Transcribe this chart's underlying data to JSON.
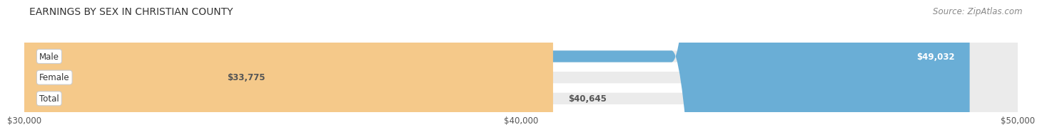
{
  "title": "EARNINGS BY SEX IN CHRISTIAN COUNTY",
  "source": "Source: ZipAtlas.com",
  "categories": [
    "Male",
    "Female",
    "Total"
  ],
  "values": [
    49032,
    33775,
    40645
  ],
  "bar_colors": [
    "#6aaed6",
    "#f4a9bc",
    "#f5c98a"
  ],
  "bar_bg_color": "#ebebeb",
  "xmin": 30000,
  "xmax": 50000,
  "xticks": [
    30000,
    40000,
    50000
  ],
  "xtick_labels": [
    "$30,000",
    "$40,000",
    "$50,000"
  ],
  "value_labels": [
    "$49,032",
    "$33,775",
    "$40,645"
  ],
  "title_fontsize": 10,
  "source_fontsize": 8.5,
  "tick_fontsize": 8.5,
  "bar_label_fontsize": 8.5,
  "background_color": "#ffffff"
}
